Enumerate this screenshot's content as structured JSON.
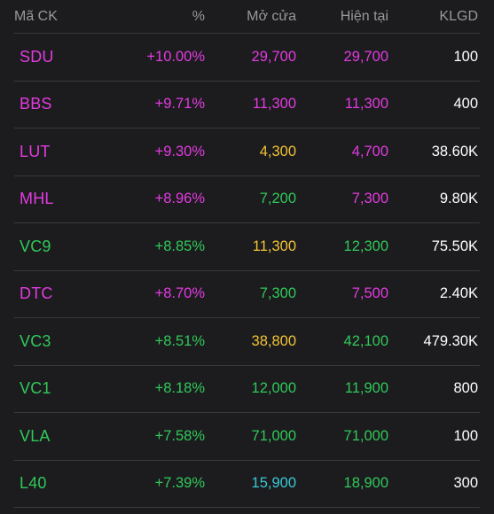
{
  "colors": {
    "background": "#1c1c1e",
    "separator": "#3a3a3c",
    "header_text": "#98989d",
    "ceiling_magenta": "#e23be0",
    "up_green": "#30c85a",
    "reference_yellow": "#f2c335",
    "floor_cyan": "#39c8d8",
    "volume_white": "#ffffff"
  },
  "header": {
    "symbol": "Mã CK",
    "percent": "%",
    "open": "Mở cửa",
    "current": "Hiện tại",
    "volume": "KLGD"
  },
  "rows": [
    {
      "symbol": "SDU",
      "percent": "+10.00%",
      "open": "29,700",
      "current": "29,700",
      "volume": "100",
      "symbol_color": "#e23be0",
      "percent_color": "#e23be0",
      "open_color": "#e23be0",
      "current_color": "#e23be0"
    },
    {
      "symbol": "BBS",
      "percent": "+9.71%",
      "open": "11,300",
      "current": "11,300",
      "volume": "400",
      "symbol_color": "#e23be0",
      "percent_color": "#e23be0",
      "open_color": "#e23be0",
      "current_color": "#e23be0"
    },
    {
      "symbol": "LUT",
      "percent": "+9.30%",
      "open": "4,300",
      "current": "4,700",
      "volume": "38.60K",
      "symbol_color": "#e23be0",
      "percent_color": "#e23be0",
      "open_color": "#f2c335",
      "current_color": "#e23be0"
    },
    {
      "symbol": "MHL",
      "percent": "+8.96%",
      "open": "7,200",
      "current": "7,300",
      "volume": "9.80K",
      "symbol_color": "#e23be0",
      "percent_color": "#e23be0",
      "open_color": "#30c85a",
      "current_color": "#e23be0"
    },
    {
      "symbol": "VC9",
      "percent": "+8.85%",
      "open": "11,300",
      "current": "12,300",
      "volume": "75.50K",
      "symbol_color": "#30c85a",
      "percent_color": "#30c85a",
      "open_color": "#f2c335",
      "current_color": "#30c85a"
    },
    {
      "symbol": "DTC",
      "percent": "+8.70%",
      "open": "7,300",
      "current": "7,500",
      "volume": "2.40K",
      "symbol_color": "#e23be0",
      "percent_color": "#e23be0",
      "open_color": "#30c85a",
      "current_color": "#e23be0"
    },
    {
      "symbol": "VC3",
      "percent": "+8.51%",
      "open": "38,800",
      "current": "42,100",
      "volume": "479.30K",
      "symbol_color": "#30c85a",
      "percent_color": "#30c85a",
      "open_color": "#f2c335",
      "current_color": "#30c85a"
    },
    {
      "symbol": "VC1",
      "percent": "+8.18%",
      "open": "12,000",
      "current": "11,900",
      "volume": "800",
      "symbol_color": "#30c85a",
      "percent_color": "#30c85a",
      "open_color": "#30c85a",
      "current_color": "#30c85a"
    },
    {
      "symbol": "VLA",
      "percent": "+7.58%",
      "open": "71,000",
      "current": "71,000",
      "volume": "100",
      "symbol_color": "#30c85a",
      "percent_color": "#30c85a",
      "open_color": "#30c85a",
      "current_color": "#30c85a"
    },
    {
      "symbol": "L40",
      "percent": "+7.39%",
      "open": "15,900",
      "current": "18,900",
      "volume": "300",
      "symbol_color": "#30c85a",
      "percent_color": "#30c85a",
      "open_color": "#39c8d8",
      "current_color": "#30c85a"
    }
  ]
}
